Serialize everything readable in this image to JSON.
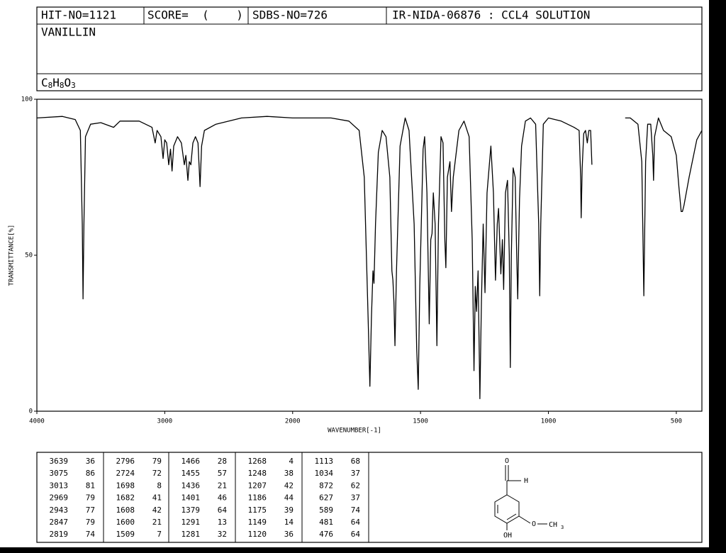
{
  "header": {
    "hit_no": "HIT-NO=1121",
    "score": "SCORE=  (    )",
    "sdbs_no": "SDBS-NO=726",
    "method": "IR-NIDA-06876 : CCL4 SOLUTION",
    "compound": "VANILLIN",
    "formula": [
      "C",
      "8",
      "H",
      "8",
      "O",
      "3"
    ]
  },
  "chart_data": {
    "type": "line",
    "y_label": "TRANSMITTANCE[%]",
    "x_label": "WAVENUMBER[-1]",
    "xlim": [
      4000,
      400
    ],
    "x_scale_break": 2000,
    "x_scale_factor": 2,
    "xticks": [
      4000,
      3000,
      2000,
      1500,
      1000,
      500
    ],
    "ylim": [
      0,
      100
    ],
    "yticks": [
      0,
      50,
      100
    ],
    "color": "#000000",
    "x": [
      4000,
      3800,
      3700,
      3660,
      3645,
      3639,
      3632,
      3620,
      3580,
      3500,
      3400,
      3350,
      3200,
      3100,
      3075,
      3060,
      3030,
      3013,
      3000,
      2985,
      2969,
      2955,
      2943,
      2930,
      2900,
      2870,
      2847,
      2835,
      2819,
      2808,
      2796,
      2780,
      2760,
      2740,
      2724,
      2712,
      2690,
      2600,
      2400,
      2200,
      2000,
      1850,
      1780,
      1740,
      1720,
      1705,
      1698,
      1692,
      1686,
      1682,
      1676,
      1665,
      1650,
      1635,
      1620,
      1612,
      1608,
      1604,
      1600,
      1594,
      1580,
      1560,
      1545,
      1525,
      1515,
      1509,
      1503,
      1490,
      1484,
      1475,
      1466,
      1460,
      1455,
      1450,
      1443,
      1436,
      1430,
      1420,
      1412,
      1405,
      1401,
      1395,
      1385,
      1379,
      1372,
      1350,
      1330,
      1310,
      1298,
      1291,
      1286,
      1281,
      1275,
      1268,
      1262,
      1255,
      1248,
      1240,
      1225,
      1215,
      1207,
      1200,
      1195,
      1186,
      1180,
      1175,
      1168,
      1160,
      1153,
      1149,
      1145,
      1138,
      1130,
      1124,
      1120,
      1116,
      1113,
      1105,
      1090,
      1070,
      1050,
      1038,
      1034,
      1030,
      1020,
      1000,
      950,
      900,
      880,
      874,
      872,
      868,
      862,
      855,
      848,
      842,
      835,
      830,
      765,
      700,
      680,
      650,
      635,
      627,
      620,
      612,
      600,
      592,
      589,
      585,
      570,
      550,
      520,
      500,
      490,
      481,
      476,
      470,
      450,
      420,
      400
    ],
    "values": [
      94,
      94.5,
      93.5,
      90,
      60,
      36,
      60,
      88,
      92,
      92.5,
      91,
      93,
      93,
      91,
      86,
      90,
      88,
      81,
      87,
      86,
      79,
      84,
      77,
      85,
      88,
      86,
      79,
      82,
      74,
      80,
      79,
      86,
      88,
      86,
      72,
      85,
      90,
      92,
      94,
      94.5,
      94,
      94,
      93,
      90,
      75,
      30,
      8,
      30,
      45,
      41,
      60,
      83,
      90,
      88,
      75,
      45,
      42,
      35,
      21,
      45,
      85,
      94,
      90,
      60,
      20,
      7,
      40,
      84,
      88,
      70,
      28,
      55,
      57,
      70,
      60,
      21,
      60,
      88,
      86,
      55,
      46,
      75,
      80,
      64,
      75,
      90,
      93,
      88,
      55,
      13,
      40,
      32,
      45,
      4,
      35,
      60,
      38,
      70,
      85,
      70,
      42,
      60,
      65,
      44,
      55,
      39,
      70,
      74,
      50,
      14,
      50,
      78,
      75,
      50,
      36,
      55,
      68,
      85,
      93,
      94,
      92,
      60,
      37,
      60,
      92,
      94,
      93,
      91,
      90,
      75,
      62,
      78,
      89,
      90,
      86,
      90,
      90,
      79,
      null,
      94,
      94,
      92,
      80,
      37,
      80,
      92,
      92,
      82,
      74,
      88,
      94,
      90,
      88,
      82,
      72,
      64,
      64,
      66,
      75,
      87,
      90
    ]
  },
  "peak_table": {
    "peaks": [
      [
        3639,
        36
      ],
      [
        3075,
        86
      ],
      [
        3013,
        81
      ],
      [
        2969,
        79
      ],
      [
        2943,
        77
      ],
      [
        2847,
        79
      ],
      [
        2819,
        74
      ],
      [
        2796,
        79
      ],
      [
        2724,
        72
      ],
      [
        1698,
        8
      ],
      [
        1682,
        41
      ],
      [
        1608,
        42
      ],
      [
        1600,
        21
      ],
      [
        1509,
        7
      ],
      [
        1466,
        28
      ],
      [
        1455,
        57
      ],
      [
        1436,
        21
      ],
      [
        1401,
        46
      ],
      [
        1379,
        64
      ],
      [
        1291,
        13
      ],
      [
        1281,
        32
      ],
      [
        1268,
        4
      ],
      [
        1248,
        38
      ],
      [
        1207,
        42
      ],
      [
        1186,
        44
      ],
      [
        1175,
        39
      ],
      [
        1149,
        14
      ],
      [
        1120,
        36
      ],
      [
        1113,
        68
      ],
      [
        1034,
        37
      ],
      [
        872,
        62
      ],
      [
        627,
        37
      ],
      [
        589,
        74
      ],
      [
        481,
        64
      ],
      [
        476,
        64
      ]
    ]
  },
  "structure": {
    "labels": [
      "O",
      "H",
      "O",
      "CH",
      "3",
      "OH"
    ]
  }
}
